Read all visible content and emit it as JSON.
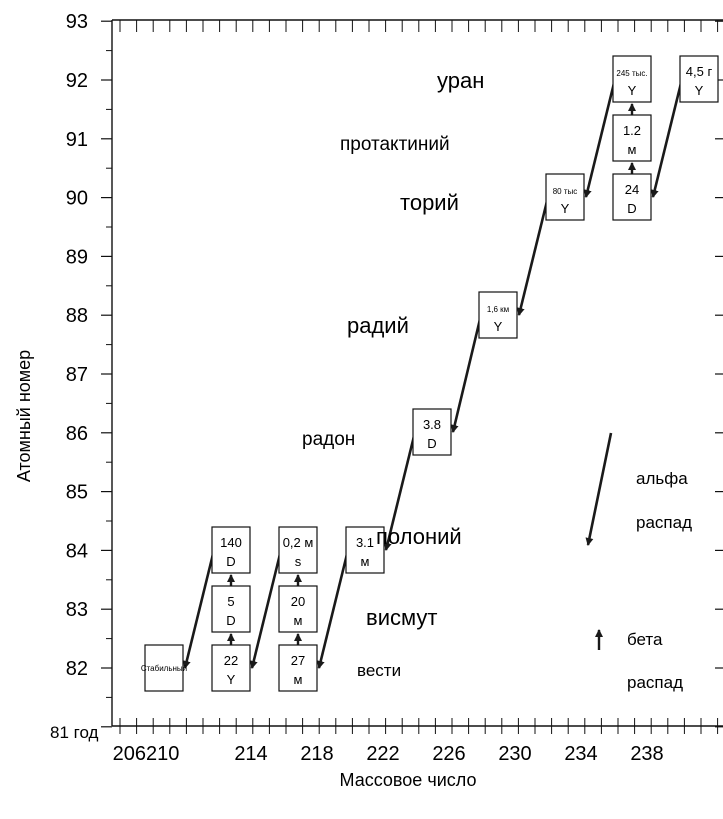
{
  "chart_data": {
    "type": "diagram",
    "title": "",
    "xlabel": "Массовое число",
    "ylabel": "Атомный номер",
    "y_ticks": [
      "93",
      "92",
      "91",
      "90",
      "89",
      "88",
      "87",
      "86",
      "85",
      "84",
      "83",
      "82"
    ],
    "y_bottom_label": "81 год",
    "x_ticks": [
      "206210",
      "214",
      "218",
      "222",
      "226",
      "230",
      "234",
      "238"
    ],
    "elements": [
      {
        "name": "уран",
        "z": 92
      },
      {
        "name": "протактиний",
        "z": 91
      },
      {
        "name": "торий",
        "z": 90
      },
      {
        "name": "радий",
        "z": 88
      },
      {
        "name": "радон",
        "z": 86
      },
      {
        "name": "полоний",
        "z": 84
      },
      {
        "name": "висмут",
        "z": 83
      },
      {
        "name": "вести",
        "z": 82
      }
    ],
    "isotopes": [
      {
        "mass": 238,
        "z": 92,
        "line1": "4,5 г",
        "line2": "Y"
      },
      {
        "mass": 234,
        "z": 92,
        "line1": "245 тыс.",
        "line2": "Y"
      },
      {
        "mass": 234,
        "z": 91,
        "line1": "1.2",
        "line2": "м"
      },
      {
        "mass": 234,
        "z": 90,
        "line1": "24",
        "line2": "D"
      },
      {
        "mass": 230,
        "z": 90,
        "line1": "80 тыс",
        "line2": "Y"
      },
      {
        "mass": 226,
        "z": 88,
        "line1": "1,6 км",
        "line2": "Y"
      },
      {
        "mass": 222,
        "z": 86,
        "line1": "3.8",
        "line2": "D"
      },
      {
        "mass": 218,
        "z": 84,
        "line1": "3.1",
        "line2": "м"
      },
      {
        "mass": 214,
        "z": 84,
        "line1": "0,2 м",
        "line2": "s"
      },
      {
        "mass": 214,
        "z": 83,
        "line1": "20",
        "line2": "м"
      },
      {
        "mass": 214,
        "z": 82,
        "line1": "27",
        "line2": "м"
      },
      {
        "mass": 210,
        "z": 84,
        "line1": "140",
        "line2": "D"
      },
      {
        "mass": 210,
        "z": 83,
        "line1": "5",
        "line2": "D"
      },
      {
        "mass": 210,
        "z": 82,
        "line1": "22",
        "line2": "Y"
      },
      {
        "mass": 206,
        "z": 82,
        "line1": "Стабильный",
        "line2": ""
      }
    ],
    "alpha_decays": [
      {
        "from": "238-92",
        "to": "234-90"
      },
      {
        "from": "234-92",
        "to": "230-90"
      },
      {
        "from": "230-90",
        "to": "226-88"
      },
      {
        "from": "226-88",
        "to": "222-86"
      },
      {
        "from": "222-86",
        "to": "218-84"
      },
      {
        "from": "218-84",
        "to": "214-82"
      },
      {
        "from": "214-84",
        "to": "210-82"
      },
      {
        "from": "210-84",
        "to": "206-82"
      }
    ],
    "beta_decays": [
      {
        "from": "234-90",
        "to": "234-91"
      },
      {
        "from": "234-91",
        "to": "234-92"
      },
      {
        "from": "214-82",
        "to": "214-83"
      },
      {
        "from": "214-83",
        "to": "214-84"
      },
      {
        "from": "210-82",
        "to": "210-83"
      },
      {
        "from": "210-83",
        "to": "210-84"
      }
    ],
    "legend": [
      {
        "type": "alpha",
        "label_line1": "альфа",
        "label_line2": "распад"
      },
      {
        "type": "beta",
        "label_line1": "бета",
        "label_line2": "распад"
      }
    ]
  },
  "colors": {
    "axis": "#111111",
    "arrow": "#1a1a1a",
    "background": "#ffffff"
  }
}
